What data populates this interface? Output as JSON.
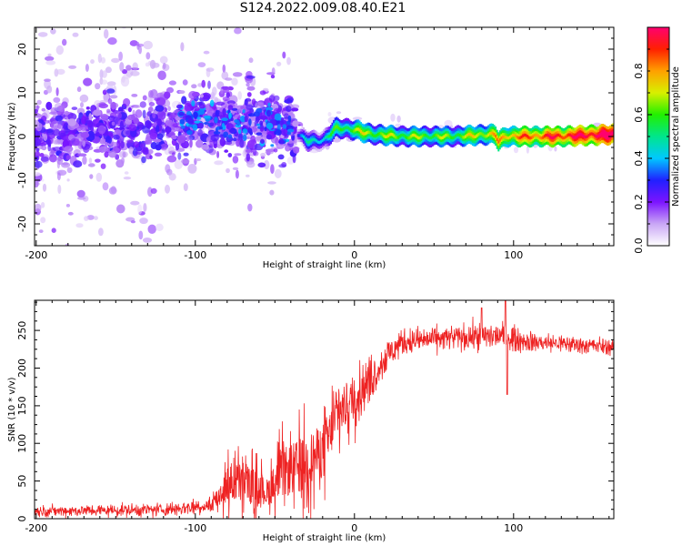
{
  "title": "S124.2022.009.08.40.E21",
  "chart_data": [
    {
      "type": "heatmap",
      "xlabel": "Height of straight line (km)",
      "ylabel": "Frequency (Hz)",
      "xlim": [
        -201,
        163
      ],
      "ylim": [
        -25,
        25
      ],
      "xticks": [
        -200,
        -100,
        0,
        100
      ],
      "yticks": [
        -20,
        -10,
        0,
        10,
        20
      ],
      "colorbar": {
        "label": "Normalized spectral amplitude",
        "range": [
          0,
          1
        ],
        "ticks": [
          0.0,
          0.2,
          0.4,
          0.6,
          0.8
        ],
        "colormap": [
          "#ffffff",
          "#c9a6f5",
          "#7c14ff",
          "#2020ff",
          "#00c8ff",
          "#00e68c",
          "#22f000",
          "#d8f000",
          "#ffa000",
          "#ff2000",
          "#ff0070"
        ]
      },
      "ridge_frequency_hz": [
        {
          "x": -200,
          "f": 1.0
        },
        {
          "x": -150,
          "f": 1.0
        },
        {
          "x": -120,
          "f": 2.5
        },
        {
          "x": -100,
          "f": 4.0
        },
        {
          "x": -80,
          "f": 4.0
        },
        {
          "x": -60,
          "f": 3.0
        },
        {
          "x": -40,
          "f": 1.5
        },
        {
          "x": -30,
          "f": -1.0
        },
        {
          "x": -20,
          "f": -1.0
        },
        {
          "x": -12,
          "f": 2.0
        },
        {
          "x": 0,
          "f": 1.5
        },
        {
          "x": 10,
          "f": 0.5
        },
        {
          "x": 30,
          "f": 0.0
        },
        {
          "x": 60,
          "f": 0.0
        },
        {
          "x": 88,
          "f": 0.5
        },
        {
          "x": 90,
          "f": -1.0
        },
        {
          "x": 95,
          "f": 0.0
        },
        {
          "x": 130,
          "f": 0.0
        },
        {
          "x": 163,
          "f": 0.5
        }
      ],
      "ridge_amplitude": [
        {
          "x": -200,
          "a": 0.08
        },
        {
          "x": -40,
          "a": 0.15
        },
        {
          "x": -30,
          "a": 0.3
        },
        {
          "x": -10,
          "a": 0.45
        },
        {
          "x": 0,
          "a": 0.55
        },
        {
          "x": 60,
          "a": 0.5
        },
        {
          "x": 100,
          "a": 0.7
        },
        {
          "x": 140,
          "a": 0.85
        },
        {
          "x": 163,
          "a": 0.95
        }
      ]
    },
    {
      "type": "line",
      "xlabel": "Height of straight line (km)",
      "ylabel": "SNR (10 * v/v)",
      "xlim": [
        -201,
        163
      ],
      "ylim": [
        0,
        290
      ],
      "xticks": [
        -200,
        -100,
        0,
        100
      ],
      "yticks": [
        0,
        50,
        100,
        150,
        200,
        250
      ],
      "line_color": "#ee2222",
      "envelope": [
        {
          "x": -201,
          "mean": 10,
          "spread": 8
        },
        {
          "x": -120,
          "mean": 12,
          "spread": 10
        },
        {
          "x": -90,
          "mean": 18,
          "spread": 14
        },
        {
          "x": -80,
          "mean": 45,
          "spread": 40
        },
        {
          "x": -70,
          "mean": 50,
          "spread": 45
        },
        {
          "x": -55,
          "mean": 35,
          "spread": 30
        },
        {
          "x": -45,
          "mean": 60,
          "spread": 55
        },
        {
          "x": -30,
          "mean": 75,
          "spread": 60
        },
        {
          "x": -20,
          "mean": 90,
          "spread": 60
        },
        {
          "x": -10,
          "mean": 140,
          "spread": 50
        },
        {
          "x": 0,
          "mean": 160,
          "spread": 45
        },
        {
          "x": 10,
          "mean": 185,
          "spread": 35
        },
        {
          "x": 20,
          "mean": 215,
          "spread": 25
        },
        {
          "x": 30,
          "mean": 235,
          "spread": 20
        },
        {
          "x": 60,
          "mean": 240,
          "spread": 18
        },
        {
          "x": 90,
          "mean": 243,
          "spread": 22
        },
        {
          "x": 110,
          "mean": 235,
          "spread": 15
        },
        {
          "x": 163,
          "mean": 228,
          "spread": 12
        }
      ],
      "features": [
        {
          "x": 95,
          "peak": 290
        },
        {
          "x": 96,
          "dip": 165
        },
        {
          "x": 80,
          "peak": 280
        }
      ]
    }
  ]
}
